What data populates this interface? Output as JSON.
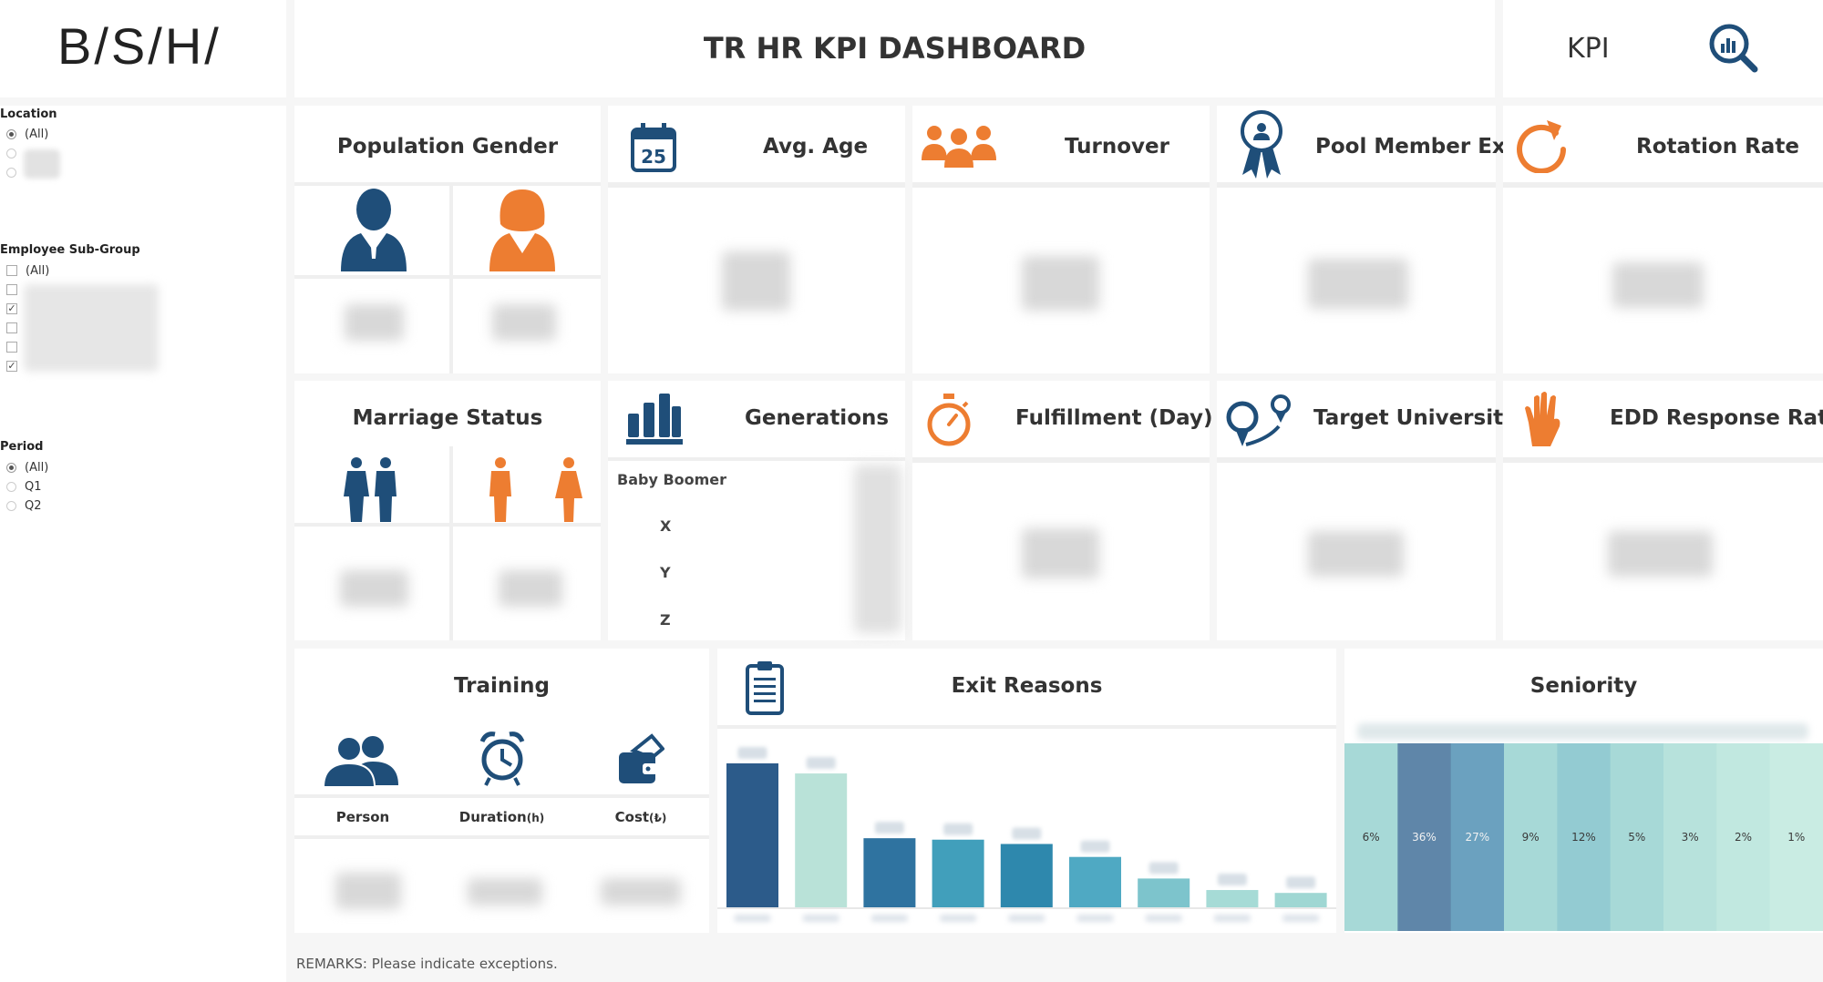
{
  "brand": {
    "logo": "B/S/H/"
  },
  "header": {
    "title": "TR HR KPI DASHBOARD",
    "kpi_label": "KPI"
  },
  "filters": {
    "location": {
      "label": "Location",
      "options": [
        "(All)"
      ]
    },
    "employee_subgroup": {
      "label": "Employee Sub-Group",
      "options": [
        "(All)"
      ]
    },
    "period": {
      "label": "Period",
      "options": [
        "(All)",
        "Q1",
        "Q2"
      ]
    }
  },
  "cards": {
    "population_gender": "Population Gender",
    "avg_age": "Avg. Age",
    "calendar_day": "25",
    "turnover": "Turnover",
    "pool_member_exit": "Pool Member Exit",
    "rotation_rate": "Rotation Rate",
    "marriage_status": "Marriage Status",
    "generations": "Generations",
    "fulfillment": "Fulfillment (Day)",
    "target_university": "Target University",
    "edd_response_rate": "EDD Response Rate",
    "training": "Training",
    "exit_reasons": "Exit Reasons",
    "seniority": "Seniority"
  },
  "generations": [
    "Baby Boomer",
    "X",
    "Y",
    "Z"
  ],
  "training": {
    "person": "Person",
    "duration": "Duration",
    "duration_unit": "(h)",
    "cost": "Cost",
    "cost_unit": "(₺)"
  },
  "colors": {
    "navy": "#1f4e79",
    "orange": "#ed7d31"
  },
  "chart_data": [
    {
      "type": "bar",
      "title": "Exit Reasons",
      "values": [
        100,
        93,
        48,
        47,
        44,
        35,
        20,
        12,
        10
      ],
      "colors": [
        "#2c5b8a",
        "#b9e2d8",
        "#2f73a0",
        "#419fbb",
        "#2e88ad",
        "#4fa9c3",
        "#7dc4cc",
        "#a6dbd6",
        "#9fd7d3"
      ]
    },
    {
      "type": "heatmap",
      "title": "Seniority",
      "values": [
        "6%",
        "36%",
        "27%",
        "9%",
        "12%",
        "5%",
        "3%",
        "2%",
        "1%"
      ],
      "colors": [
        "#a7d9d7",
        "#5f86a9",
        "#6ba1bf",
        "#a7d9d7",
        "#93cbd2",
        "#a7d9d7",
        "#b7e2dc",
        "#c1e8e0",
        "#c9ece3"
      ]
    }
  ],
  "remarks": "REMARKS: Please indicate exceptions."
}
